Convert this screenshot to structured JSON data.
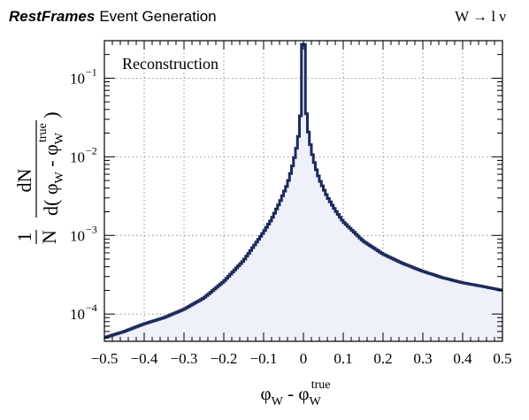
{
  "header": {
    "brand": "RestFrames",
    "title": "Event Generation",
    "process": "W → l ν"
  },
  "chart_data": {
    "type": "area",
    "title": "",
    "annotation": "Reconstruction",
    "xlabel": "φW - φWtrue",
    "ylabel": "1/N dN/d(φW - φWtrue)",
    "xlim": [
      -0.5,
      0.5
    ],
    "ylim": [
      4.5e-05,
      0.3
    ],
    "yscale": "log",
    "grid": true,
    "x_ticks": [
      "−0.5",
      "−0.4",
      "−0.3",
      "−0.2",
      "−0.1",
      "0",
      "0.1",
      "0.2",
      "0.3",
      "0.4",
      "0.5"
    ],
    "y_ticks": [
      {
        "base": "10",
        "exp": "−4",
        "value": 0.0001
      },
      {
        "base": "10",
        "exp": "−3",
        "value": 0.001
      },
      {
        "base": "10",
        "exp": "−2",
        "value": 0.01
      },
      {
        "base": "10",
        "exp": "−1",
        "value": 0.1
      }
    ],
    "colors": {
      "line": "#1c2a5c",
      "fill": "#eef0fa"
    },
    "series": [
      {
        "x": [
          -0.5,
          -0.45,
          -0.4,
          -0.35,
          -0.3,
          -0.25,
          -0.2,
          -0.15,
          -0.1,
          -0.08,
          -0.06,
          -0.04,
          -0.03,
          -0.02,
          -0.015,
          -0.01,
          -0.005,
          0,
          0.005,
          0.01,
          0.015,
          0.02,
          0.03,
          0.04,
          0.06,
          0.08,
          0.1,
          0.15,
          0.2,
          0.25,
          0.3,
          0.35,
          0.4,
          0.45,
          0.5
        ],
        "values": [
          5e-05,
          6e-05,
          7.5e-05,
          9e-05,
          0.000115,
          0.00016,
          0.00026,
          0.00048,
          0.0011,
          0.0016,
          0.0026,
          0.0045,
          0.0068,
          0.011,
          0.015,
          0.022,
          0.05,
          0.27,
          0.05,
          0.025,
          0.017,
          0.012,
          0.0075,
          0.0052,
          0.0031,
          0.0021,
          0.0015,
          0.00085,
          0.00058,
          0.00044,
          0.00035,
          0.00029,
          0.00025,
          0.000225,
          0.0002
        ]
      }
    ]
  }
}
